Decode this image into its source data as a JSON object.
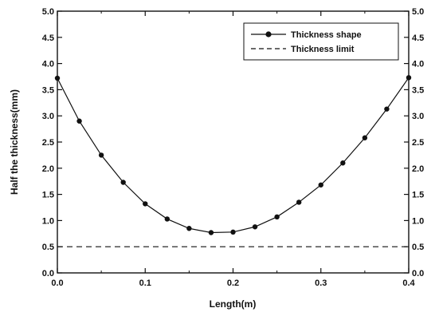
{
  "chart_data": {
    "type": "line",
    "title": "",
    "xlabel": "Length(m)",
    "ylabel": "Half the thickness(mm)",
    "xlim": [
      0.0,
      0.4
    ],
    "ylim": [
      0.0,
      5.0
    ],
    "x_ticks": [
      "0.0",
      "0.1",
      "0.2",
      "0.3",
      "0.4"
    ],
    "y_ticks": [
      "0.0",
      "0.5",
      "1.0",
      "1.5",
      "2.0",
      "2.5",
      "3.0",
      "3.5",
      "4.0",
      "4.5",
      "5.0"
    ],
    "right_y_ticks": [
      "0.0",
      "0.5",
      "1.0",
      "1.5",
      "2.0",
      "2.5",
      "3.0",
      "3.5",
      "4.0",
      "4.5",
      "5.0"
    ],
    "grid": false,
    "legend_position": "top-right",
    "series": [
      {
        "name": "Thickness shape",
        "style": "solid-with-markers",
        "color": "#111111",
        "x": [
          0.0,
          0.025,
          0.05,
          0.075,
          0.1,
          0.125,
          0.15,
          0.175,
          0.2,
          0.225,
          0.25,
          0.275,
          0.3,
          0.325,
          0.35,
          0.375,
          0.4
        ],
        "y": [
          3.72,
          2.9,
          2.25,
          1.73,
          1.32,
          1.03,
          0.85,
          0.77,
          0.78,
          0.88,
          1.07,
          1.35,
          1.68,
          2.1,
          2.58,
          3.13,
          3.73
        ]
      },
      {
        "name": "Thickness limit",
        "style": "dashed",
        "color": "#111111",
        "x": [
          0.0,
          0.4
        ],
        "y": [
          0.5,
          0.5
        ]
      }
    ]
  }
}
